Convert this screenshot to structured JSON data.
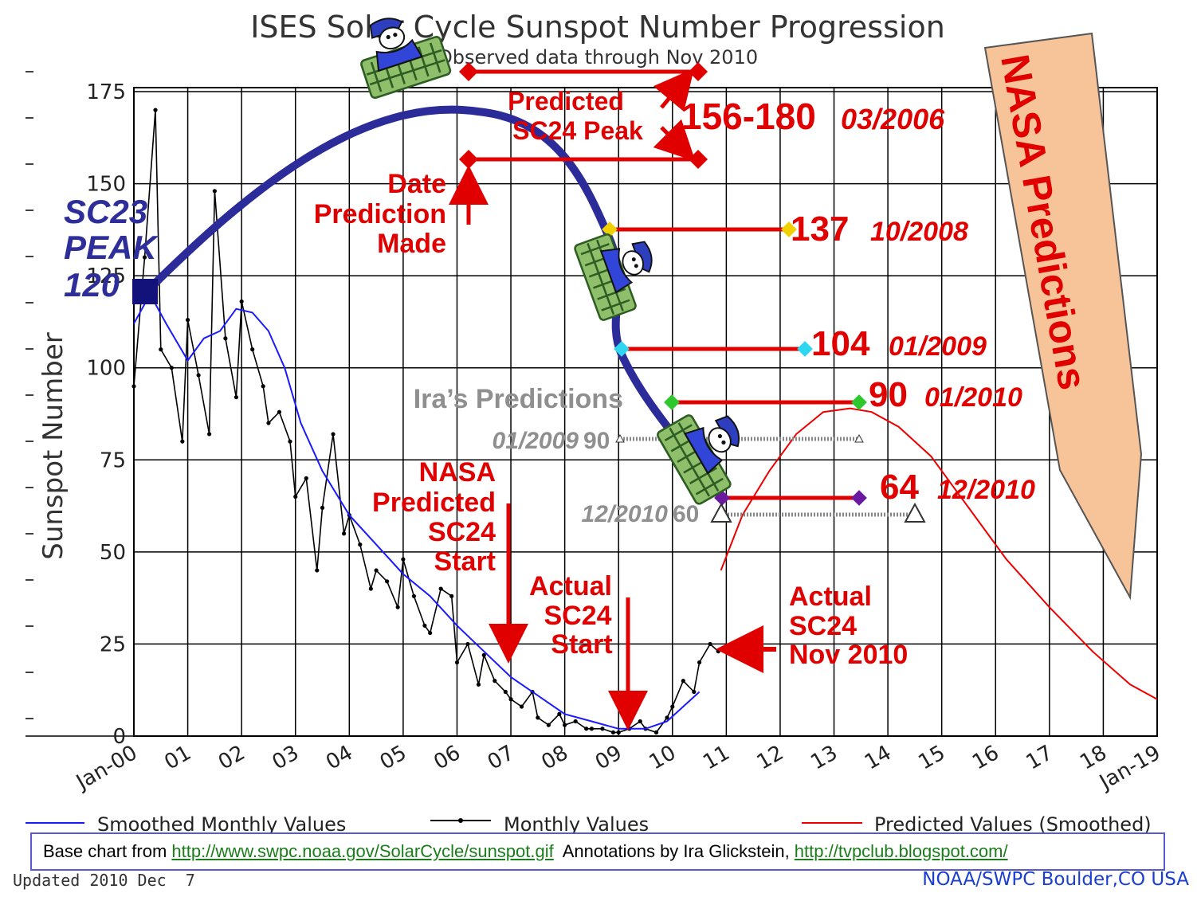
{
  "chart_data": {
    "type": "line",
    "title": "ISES Solar Cycle Sunspot Number Progression",
    "subtitle": "Observed data through Nov 2010",
    "ylabel": "Sunspot Number",
    "ylim": [
      0,
      175
    ],
    "yticks": [
      "0",
      "25",
      "50",
      "75",
      "100",
      "125",
      "150",
      "175"
    ],
    "xticks": [
      "Jan-00",
      "01",
      "02",
      "03",
      "04",
      "05",
      "06",
      "07",
      "08",
      "09",
      "10",
      "11",
      "12",
      "13",
      "14",
      "15",
      "16",
      "17",
      "18",
      "Jan-19"
    ],
    "grid": true,
    "legend": [
      "Smoothed Monthly Values",
      "Monthly Values",
      "Predicted Values (Smoothed)"
    ],
    "series": [
      {
        "name": "Monthly Values",
        "color": "#000000",
        "x": [
          2000.0,
          2000.2,
          2000.4,
          2000.5,
          2000.7,
          2000.9,
          2001.0,
          2001.2,
          2001.4,
          2001.5,
          2001.7,
          2001.9,
          2002.0,
          2002.2,
          2002.4,
          2002.5,
          2002.7,
          2002.9,
          2003.0,
          2003.2,
          2003.4,
          2003.5,
          2003.7,
          2003.9,
          2004.0,
          2004.2,
          2004.4,
          2004.5,
          2004.7,
          2004.9,
          2005.0,
          2005.2,
          2005.4,
          2005.5,
          2005.7,
          2005.9,
          2006.0,
          2006.2,
          2006.4,
          2006.5,
          2006.7,
          2006.9,
          2007.0,
          2007.2,
          2007.4,
          2007.5,
          2007.7,
          2007.9,
          2008.0,
          2008.2,
          2008.4,
          2008.5,
          2008.7,
          2008.9,
          2009.0,
          2009.2,
          2009.4,
          2009.5,
          2009.7,
          2009.9,
          2010.0,
          2010.2,
          2010.4,
          2010.5,
          2010.7,
          2010.85
        ],
        "y": [
          95,
          130,
          170,
          105,
          100,
          80,
          113,
          98,
          82,
          148,
          108,
          92,
          118,
          105,
          95,
          85,
          88,
          80,
          65,
          70,
          45,
          62,
          82,
          55,
          60,
          52,
          40,
          45,
          42,
          35,
          48,
          38,
          30,
          28,
          40,
          38,
          20,
          25,
          14,
          22,
          15,
          12,
          10,
          8,
          12,
          5,
          3,
          6,
          3,
          4,
          2,
          2,
          2,
          1,
          1,
          2,
          4,
          2,
          1,
          5,
          8,
          15,
          12,
          20,
          25,
          23
        ]
      },
      {
        "name": "Smoothed Monthly Values",
        "color": "#1a1aff",
        "x": [
          2000.0,
          2000.3,
          2000.6,
          2001.0,
          2001.3,
          2001.6,
          2001.9,
          2002.2,
          2002.5,
          2002.8,
          2003.1,
          2003.5,
          2004.0,
          2004.5,
          2005.0,
          2005.5,
          2006.0,
          2006.5,
          2007.0,
          2007.5,
          2008.0,
          2008.5,
          2009.0,
          2009.5,
          2009.9,
          2010.2,
          2010.5
        ],
        "y": [
          112,
          120,
          112,
          102,
          108,
          110,
          116,
          115,
          110,
          100,
          85,
          72,
          60,
          52,
          44,
          38,
          30,
          23,
          16,
          11,
          6,
          4,
          2,
          2,
          4,
          8,
          12
        ]
      },
      {
        "name": "Predicted Values (Smoothed)",
        "color": "#ee0000",
        "x": [
          2010.9,
          2011.3,
          2011.8,
          2012.3,
          2012.8,
          2013.3,
          2013.7,
          2014.2,
          2014.8,
          2015.5,
          2016.2,
          2017.0,
          2017.8,
          2018.5,
          2019.0
        ],
        "y": [
          45,
          60,
          72,
          82,
          88,
          89,
          88,
          84,
          76,
          62,
          48,
          35,
          23,
          14,
          10
        ]
      }
    ]
  },
  "header": {
    "title": "ISES Solar Cycle Sunspot Number Progression",
    "subtitle": "Observed data through Nov 2010"
  },
  "annotations": {
    "sc23_line1": "SC23",
    "sc23_line2": "PEAK",
    "sc23_line3": "120",
    "predicted_peak_line1": "Predicted",
    "predicted_peak_line2": "SC24 Peak",
    "peak_value": "156-180",
    "peak_date": "03/2006",
    "date_pred_line1": "Date",
    "date_pred_line2": "Prediction",
    "date_pred_line3": "Made",
    "p2008_value": "137",
    "p2008_date": "10/2008",
    "p2009_value": "104",
    "p2009_date": "01/2009",
    "p2010_value": "90",
    "p2010_date": "01/2010",
    "p2010b_value": "64",
    "p2010b_date": "12/2010",
    "ira_title": "Ira’s Predictions",
    "ira1_date": "01/2009",
    "ira1_value": "90",
    "ira2_date": "12/2010",
    "ira2_value": "60",
    "nasa_start_line1": "NASA",
    "nasa_start_line2": "Predicted",
    "nasa_start_line3": "SC24",
    "nasa_start_line4": "Start",
    "actual_start_line1": "Actual",
    "actual_start_line2": "SC24",
    "actual_start_line3": "Start",
    "actual_nov_line1": "Actual",
    "actual_nov_line2": "SC24",
    "actual_nov_line3": "Nov 2010",
    "nasa_banner": "NASA Predictions"
  },
  "footer": {
    "base_prefix": "Base chart from ",
    "base_link": "http://www.swpc.noaa.gov/SolarCycle/sunspot.gif",
    "annot_prefix": "  Annotations by Ira Glickstein, ",
    "annot_link": "http://tvpclub.blogspot.com/",
    "updated": "Updated 2010 Dec  7",
    "source": "NOAA/SWPC Boulder,CO USA"
  },
  "colors": {
    "annotation": "#e00000",
    "sc23": "#2e2e9a",
    "ira": "#8f8f8f",
    "banner_fill": "#f7c49a",
    "nasa_trend": "#2b2b9a"
  },
  "icons": [
    "falling-figure-icon"
  ]
}
